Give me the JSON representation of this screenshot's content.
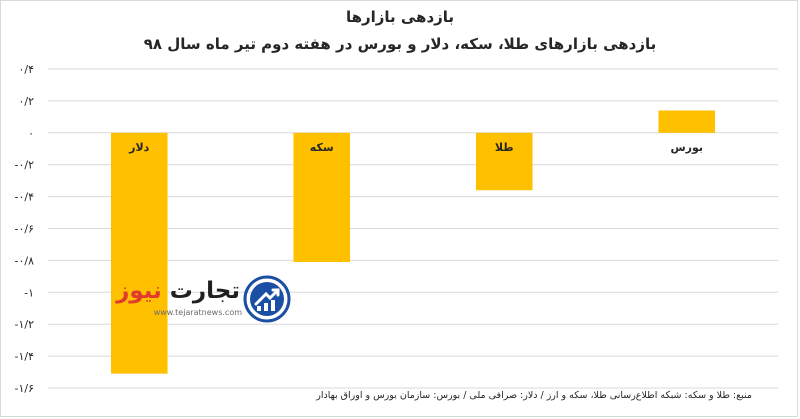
{
  "chart_data": {
    "type": "bar",
    "title": "بازدهی بازارها",
    "subtitle": "بازدهی بازارهای طلا، سکه، دلار و بورس در هفته دوم تیر ماه سال ۹۸",
    "categories": [
      "دلار",
      "سکه",
      "طلا",
      "بورس"
    ],
    "values": [
      -1.51,
      -0.81,
      -0.36,
      0.14
    ],
    "ylim": [
      -1.6,
      0.4
    ],
    "yticks": [
      0.4,
      0.2,
      0,
      -0.2,
      -0.4,
      -0.6,
      -0.8,
      -1,
      -1.2,
      -1.4,
      -1.6
    ],
    "ytick_labels": [
      "۰/۴",
      "۰/۲",
      "۰",
      "-۰/۲",
      "-۰/۴",
      "-۰/۶",
      "-۰/۸",
      "-۱",
      "-۱/۲",
      "-۱/۴",
      "-۱/۶"
    ],
    "grid": true,
    "legend": false,
    "bar_color": "#ffc000",
    "gridline_color": "#d9d9d9",
    "xlabel": "",
    "ylabel": ""
  },
  "source": "منبع: طلا و سکه: شبکه اطلاع‌رسانی طلا، سکه و ارز / دلار: صرافی ملی / بورس: سازمان بورس و اوراق بهادار",
  "watermark": {
    "name_part1": "تجارت",
    "name_part2": "نیوز",
    "url": "www.tejaratnews.com",
    "logo_color": "#1a4fa3"
  }
}
